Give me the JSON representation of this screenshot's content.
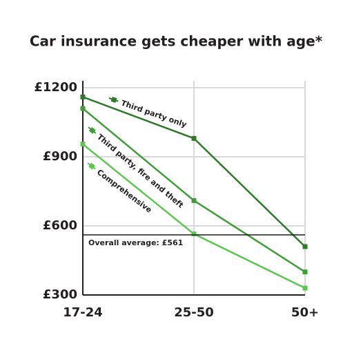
{
  "chart_data": {
    "type": "line",
    "title": "Car insurance gets cheaper with age*",
    "categories": [
      "17-24",
      "25-50",
      "50+"
    ],
    "series": [
      {
        "name": "Third party only",
        "color": "#2e7a2a",
        "values": [
          1160,
          980,
          510
        ]
      },
      {
        "name": "Third party, fire and theft",
        "color": "#3f9e37",
        "values": [
          1110,
          710,
          400
        ]
      },
      {
        "name": "Comprehensive",
        "color": "#5cc650",
        "values": [
          955,
          565,
          330
        ]
      }
    ],
    "average": {
      "label": "Overall average: £561",
      "value": 561,
      "color": "#1a1a1a"
    },
    "ylim": [
      300,
      1230
    ],
    "yticks": [
      {
        "value": 300,
        "label": "£300"
      },
      {
        "value": 600,
        "label": "£600"
      },
      {
        "value": 900,
        "label": "£900"
      },
      {
        "value": 1200,
        "label": "£1200"
      }
    ],
    "grid": true
  }
}
